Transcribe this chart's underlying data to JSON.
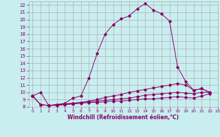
{
  "xlabel": "Windchill (Refroidissement éolien,°C)",
  "background_color": "#c8eef0",
  "grid_color": "#b0b0b0",
  "line_color": "#880066",
  "xlim": [
    -0.5,
    23
  ],
  "ylim": [
    8,
    22.5
  ],
  "xticks": [
    0,
    1,
    2,
    3,
    4,
    5,
    6,
    7,
    8,
    9,
    10,
    11,
    12,
    13,
    14,
    15,
    16,
    17,
    18,
    19,
    20,
    21,
    22,
    23
  ],
  "yticks": [
    8,
    9,
    10,
    11,
    12,
    13,
    14,
    15,
    16,
    17,
    18,
    19,
    20,
    21,
    22
  ],
  "series": [
    {
      "x": [
        0,
        1,
        2,
        3,
        4,
        5,
        6,
        7,
        8,
        9,
        10,
        11,
        12,
        13,
        14,
        15,
        16,
        17,
        18,
        19,
        20,
        21,
        22
      ],
      "y": [
        9.5,
        10.0,
        8.2,
        8.3,
        8.5,
        9.2,
        9.5,
        12.0,
        15.3,
        18.0,
        19.3,
        20.1,
        20.5,
        21.5,
        22.2,
        21.3,
        20.8,
        19.8,
        13.5,
        11.5,
        10.3,
        10.5,
        10.0
      ]
    },
    {
      "x": [
        0,
        1,
        2,
        3,
        4,
        5,
        6,
        7,
        8,
        9,
        10,
        11,
        12,
        13,
        14,
        15,
        16,
        17,
        18,
        19,
        20,
        21,
        22
      ],
      "y": [
        9.5,
        8.3,
        8.2,
        8.3,
        8.4,
        8.5,
        8.6,
        8.8,
        9.0,
        9.3,
        9.5,
        9.7,
        10.0,
        10.2,
        10.4,
        10.6,
        10.8,
        11.0,
        11.2,
        11.0,
        10.3,
        10.5,
        10.0
      ]
    },
    {
      "x": [
        0,
        1,
        2,
        3,
        4,
        5,
        6,
        7,
        8,
        9,
        10,
        11,
        12,
        13,
        14,
        15,
        16,
        17,
        18,
        19,
        20,
        21,
        22
      ],
      "y": [
        9.5,
        8.3,
        8.2,
        8.3,
        8.4,
        8.5,
        8.6,
        8.7,
        8.8,
        8.9,
        9.0,
        9.1,
        9.2,
        9.4,
        9.6,
        9.7,
        9.8,
        9.9,
        10.0,
        9.9,
        9.8,
        10.0,
        10.0
      ]
    },
    {
      "x": [
        0,
        1,
        2,
        3,
        4,
        5,
        6,
        7,
        8,
        9,
        10,
        11,
        12,
        13,
        14,
        15,
        16,
        17,
        18,
        19,
        20,
        21,
        22
      ],
      "y": [
        9.5,
        8.3,
        8.2,
        8.2,
        8.3,
        8.4,
        8.5,
        8.6,
        8.6,
        8.7,
        8.8,
        8.8,
        8.9,
        9.0,
        9.1,
        9.1,
        9.2,
        9.3,
        9.4,
        9.3,
        9.2,
        9.5,
        9.8
      ]
    }
  ]
}
